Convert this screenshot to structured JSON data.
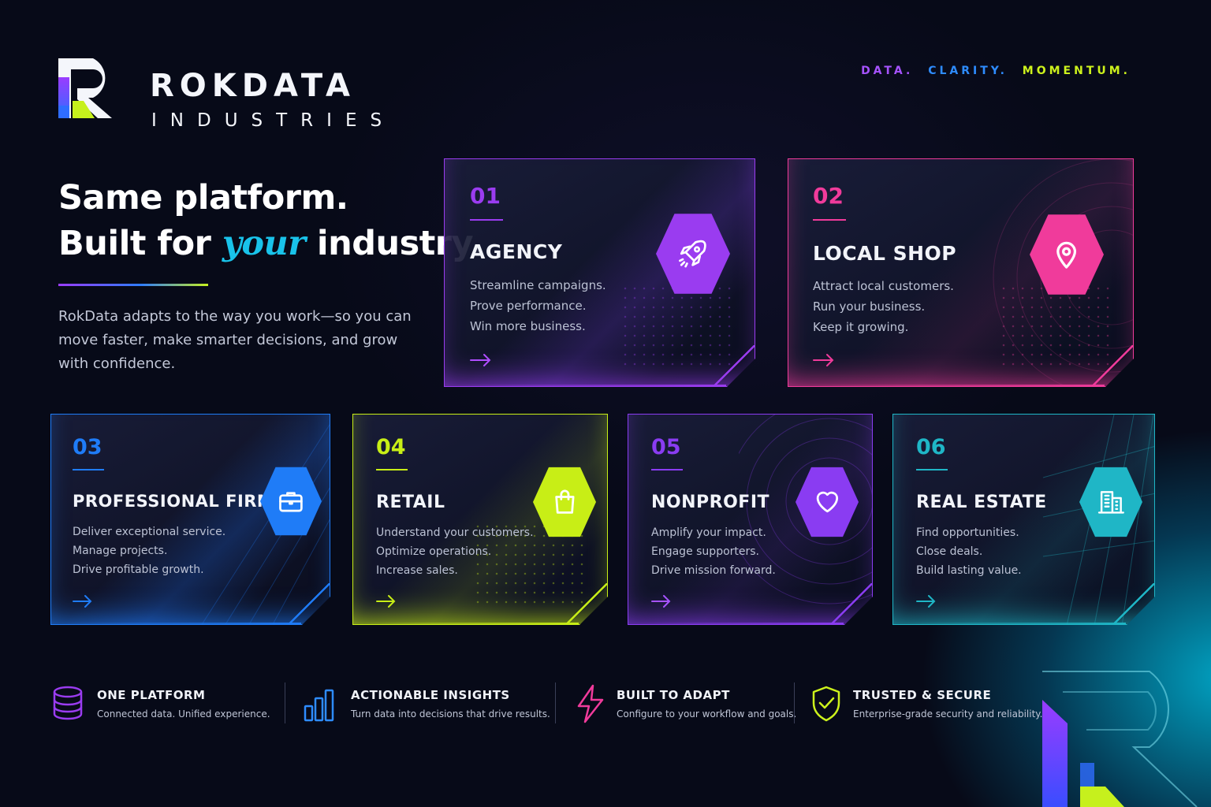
{
  "brand": {
    "name": "ROKDATA",
    "sub": "INDUSTRIES",
    "tagline": [
      {
        "text": "DATA.",
        "color": "#a653ff"
      },
      {
        "text": "CLARITY.",
        "color": "#2e8cff"
      },
      {
        "text": "MOMENTUM.",
        "color": "#cdf21c"
      }
    ]
  },
  "hero": {
    "line1": "Same platform.",
    "line2_before": "Built for ",
    "line2_accent": "your",
    "line2_after": " industry.",
    "description": "RokData adapts to the way you work—so you can move faster, make smarter decisions, and grow with confidence."
  },
  "cards": [
    {
      "number": "01",
      "title": "AGENCY",
      "lines": [
        "Streamline campaigns.",
        "Prove performance.",
        "Win more business."
      ],
      "color": "#9a3cf0",
      "icon": "rocket-icon"
    },
    {
      "number": "02",
      "title": "LOCAL SHOP",
      "lines": [
        "Attract local customers.",
        "Run your business.",
        "Keep it growing."
      ],
      "color": "#f03b9b",
      "icon": "map-pin-icon"
    },
    {
      "number": "03",
      "title": "PROFESSIONAL FIRM",
      "lines": [
        "Deliver exceptional service.",
        "Manage projects.",
        "Drive profitable growth."
      ],
      "color": "#1f7cf7",
      "icon": "briefcase-icon"
    },
    {
      "number": "04",
      "title": "RETAIL",
      "lines": [
        "Understand your customers.",
        "Optimize operations.",
        "Increase sales."
      ],
      "color": "#c8ee16",
      "icon": "shopping-bag-icon"
    },
    {
      "number": "05",
      "title": "NONPROFIT",
      "lines": [
        "Amplify your impact.",
        "Engage supporters.",
        "Drive mission forward."
      ],
      "color": "#8a3cf2",
      "icon": "heart-icon"
    },
    {
      "number": "06",
      "title": "REAL ESTATE",
      "lines": [
        "Find opportunities.",
        "Close deals.",
        "Build lasting value."
      ],
      "color": "#1fb6c6",
      "icon": "building-icon"
    }
  ],
  "features": [
    {
      "title": "ONE PLATFORM",
      "desc": "Connected data. Unified experience.",
      "icon": "database-icon",
      "color": "#9a3cf0"
    },
    {
      "title": "ACTIONABLE INSIGHTS",
      "desc": "Turn data into decisions that drive results.",
      "icon": "bar-chart-icon",
      "color": "#2e8cff"
    },
    {
      "title": "BUILT TO ADAPT",
      "desc": "Configure to your workflow and goals.",
      "icon": "lightning-icon",
      "color": "#f03b9b"
    },
    {
      "title": "TRUSTED & SECURE",
      "desc": "Enterprise-grade security and reliability.",
      "icon": "shield-check-icon",
      "color": "#cdf21c"
    }
  ]
}
